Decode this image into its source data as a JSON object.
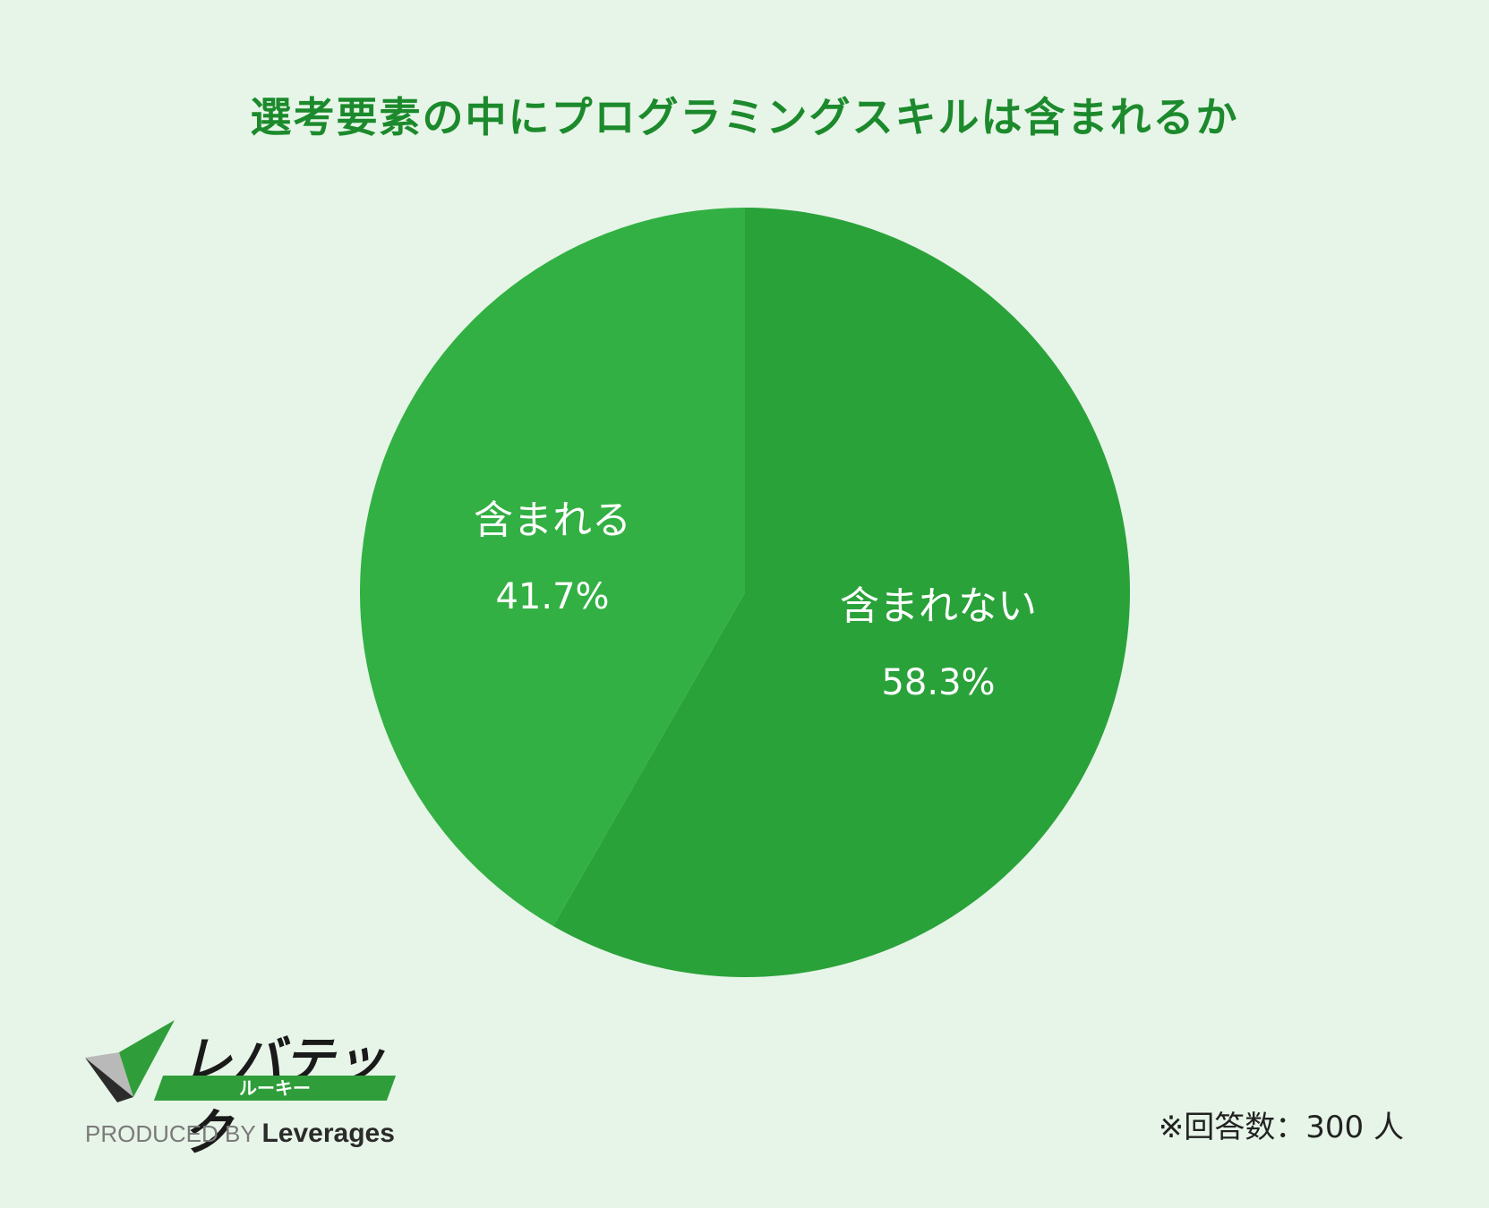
{
  "chart_data": {
    "type": "pie",
    "title": "選考要素の中にプログラミングスキルは含まれるか",
    "slices": [
      {
        "label": "含まれない",
        "value": 58.3,
        "value_label": "58.3%",
        "color": "#2aa23a"
      },
      {
        "label": "含まれる",
        "value": 41.7,
        "value_label": "41.7%",
        "color": "#33b043"
      }
    ],
    "legend": "none",
    "start_angle": "12 o'clock",
    "direction": "clockwise"
  },
  "footer": {
    "logo_main": "レバテック",
    "logo_sub": "ルーキー",
    "produced_by": "PRODUCED BY",
    "brand": "Leverages",
    "note": "※回答数：300 人"
  },
  "colors": {
    "background": "#e7f5e8",
    "title": "#1c8a2c"
  }
}
